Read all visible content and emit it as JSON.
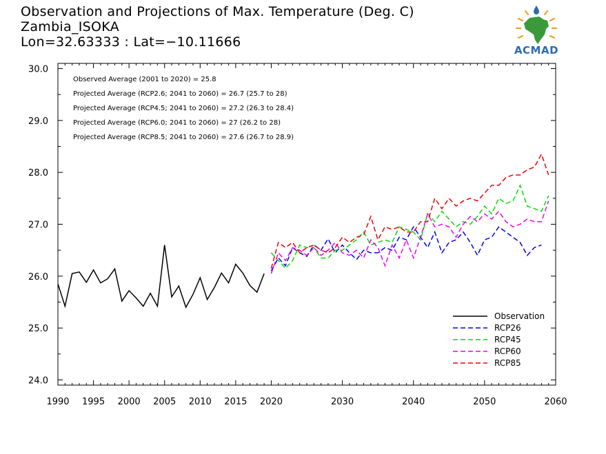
{
  "header": {
    "line1": "Observation and Projections of Max. Temperature (Deg. C)",
    "line2": "Zambia_ISOKA",
    "line3": "Lon=32.63333 : Lat=−10.11666"
  },
  "logo": {
    "text": "ACMAD",
    "colors": {
      "africa": "#3a9a3a",
      "sun": "#f0a21e",
      "drop": "#2b6cb0"
    }
  },
  "annotations": [
    "Observed Average (2001 to 2020) = 25.8",
    "Projected Average (RCP2.6; 2041 to 2060) = 26.7 (25.7 to 28)",
    "Projected Average (RCP4.5; 2041 to 2060) = 27.2 (26.3 to 28.4)",
    "Projected Average (RCP6.0; 2041 to 2060) = 27 (26.2 to 28)",
    "Projected Average (RCP8.5; 2041 to 2060) = 27.6 (26.7 to 28.9)"
  ],
  "chart_data": {
    "type": "line",
    "title": "Observation and Projections of Max. Temperature (Deg. C)",
    "xlim": [
      1990,
      2060
    ],
    "ylim": [
      23.9,
      30.1
    ],
    "x_ticks": [
      {
        "value": 1990,
        "label": "1990"
      },
      {
        "value": 1995,
        "label": "1995"
      },
      {
        "value": 2000,
        "label": "2000"
      },
      {
        "value": 2005,
        "label": "2005"
      },
      {
        "value": 2010,
        "label": "2010"
      },
      {
        "value": 2015,
        "label": "2015"
      },
      {
        "value": 2020,
        "label": "2020"
      },
      {
        "value": 2030,
        "label": "2030"
      },
      {
        "value": 2040,
        "label": "2040"
      },
      {
        "value": 2050,
        "label": "2050"
      },
      {
        "value": 2060,
        "label": "2060"
      }
    ],
    "y_ticks": [
      {
        "value": 24,
        "label": "24.0"
      },
      {
        "value": 25,
        "label": "25.0"
      },
      {
        "value": 26,
        "label": "26.0"
      },
      {
        "value": 27,
        "label": "27.0"
      },
      {
        "value": 28,
        "label": "28.0"
      },
      {
        "value": 29,
        "label": "29.0"
      },
      {
        "value": 30,
        "label": "30.0"
      }
    ],
    "legend_placement": "bottom-right",
    "series": [
      {
        "name": "Observation",
        "color": "#000000",
        "dash": "solid",
        "x_start": 1990,
        "values": [
          25.85,
          25.42,
          26.05,
          26.08,
          25.88,
          26.12,
          25.87,
          25.95,
          26.14,
          25.52,
          25.72,
          25.58,
          25.42,
          25.67,
          25.42,
          26.6,
          25.6,
          25.81,
          25.4,
          25.65,
          25.97,
          25.55,
          25.78,
          26.06,
          25.87,
          26.23,
          26.06,
          25.82,
          25.69,
          26.05
        ]
      },
      {
        "name": "RCP26",
        "color": "#0000ee",
        "dash": "dashed",
        "x_start": 2020,
        "values": [
          26.1,
          26.35,
          26.2,
          26.55,
          26.45,
          26.38,
          26.6,
          26.5,
          26.72,
          26.45,
          26.6,
          26.45,
          26.32,
          26.5,
          26.45,
          26.45,
          26.55,
          26.5,
          26.75,
          26.7,
          26.95,
          26.75,
          26.55,
          26.85,
          26.45,
          26.65,
          26.7,
          26.85,
          26.65,
          26.4,
          26.7,
          26.75,
          26.95,
          26.85,
          26.75,
          26.65,
          26.4,
          26.55,
          26.6
        ]
      },
      {
        "name": "RCP45",
        "color": "#00dd00",
        "dash": "dashed",
        "x_start": 2020,
        "values": [
          26.45,
          26.3,
          26.15,
          26.3,
          26.6,
          26.55,
          26.55,
          26.35,
          26.35,
          26.5,
          26.5,
          26.6,
          26.7,
          26.85,
          26.6,
          26.65,
          26.7,
          26.65,
          26.95,
          26.9,
          26.85,
          26.7,
          27.2,
          27.05,
          27.25,
          27.1,
          26.95,
          27.05,
          27.0,
          27.15,
          27.35,
          27.2,
          27.5,
          27.4,
          27.45,
          27.75,
          27.35,
          27.3,
          27.25,
          27.55
        ]
      },
      {
        "name": "RCP60",
        "color": "#ee00ee",
        "dash": "dashed",
        "x_start": 2020,
        "values": [
          26.05,
          26.45,
          26.3,
          26.55,
          26.5,
          26.4,
          26.55,
          26.4,
          26.5,
          26.65,
          26.45,
          26.4,
          26.5,
          26.35,
          26.7,
          26.55,
          26.2,
          26.6,
          26.35,
          26.7,
          26.35,
          26.75,
          27.2,
          26.95,
          27.0,
          26.95,
          26.75,
          27.0,
          27.15,
          27.05,
          27.2,
          27.1,
          27.25,
          27.05,
          26.95,
          27.0,
          27.1,
          27.05,
          27.05,
          27.45
        ]
      },
      {
        "name": "RCP85",
        "color": "#ee0000",
        "dash": "dashed",
        "x_start": 2020,
        "values": [
          26.15,
          26.65,
          26.55,
          26.65,
          26.45,
          26.55,
          26.6,
          26.5,
          26.45,
          26.55,
          26.75,
          26.65,
          26.75,
          26.8,
          27.15,
          26.7,
          26.95,
          26.9,
          26.95,
          26.85,
          26.85,
          27.05,
          27.05,
          27.5,
          27.3,
          27.5,
          27.35,
          27.45,
          27.5,
          27.45,
          27.6,
          27.75,
          27.75,
          27.9,
          27.95,
          27.95,
          28.05,
          28.1,
          28.35,
          27.95
        ]
      }
    ]
  }
}
